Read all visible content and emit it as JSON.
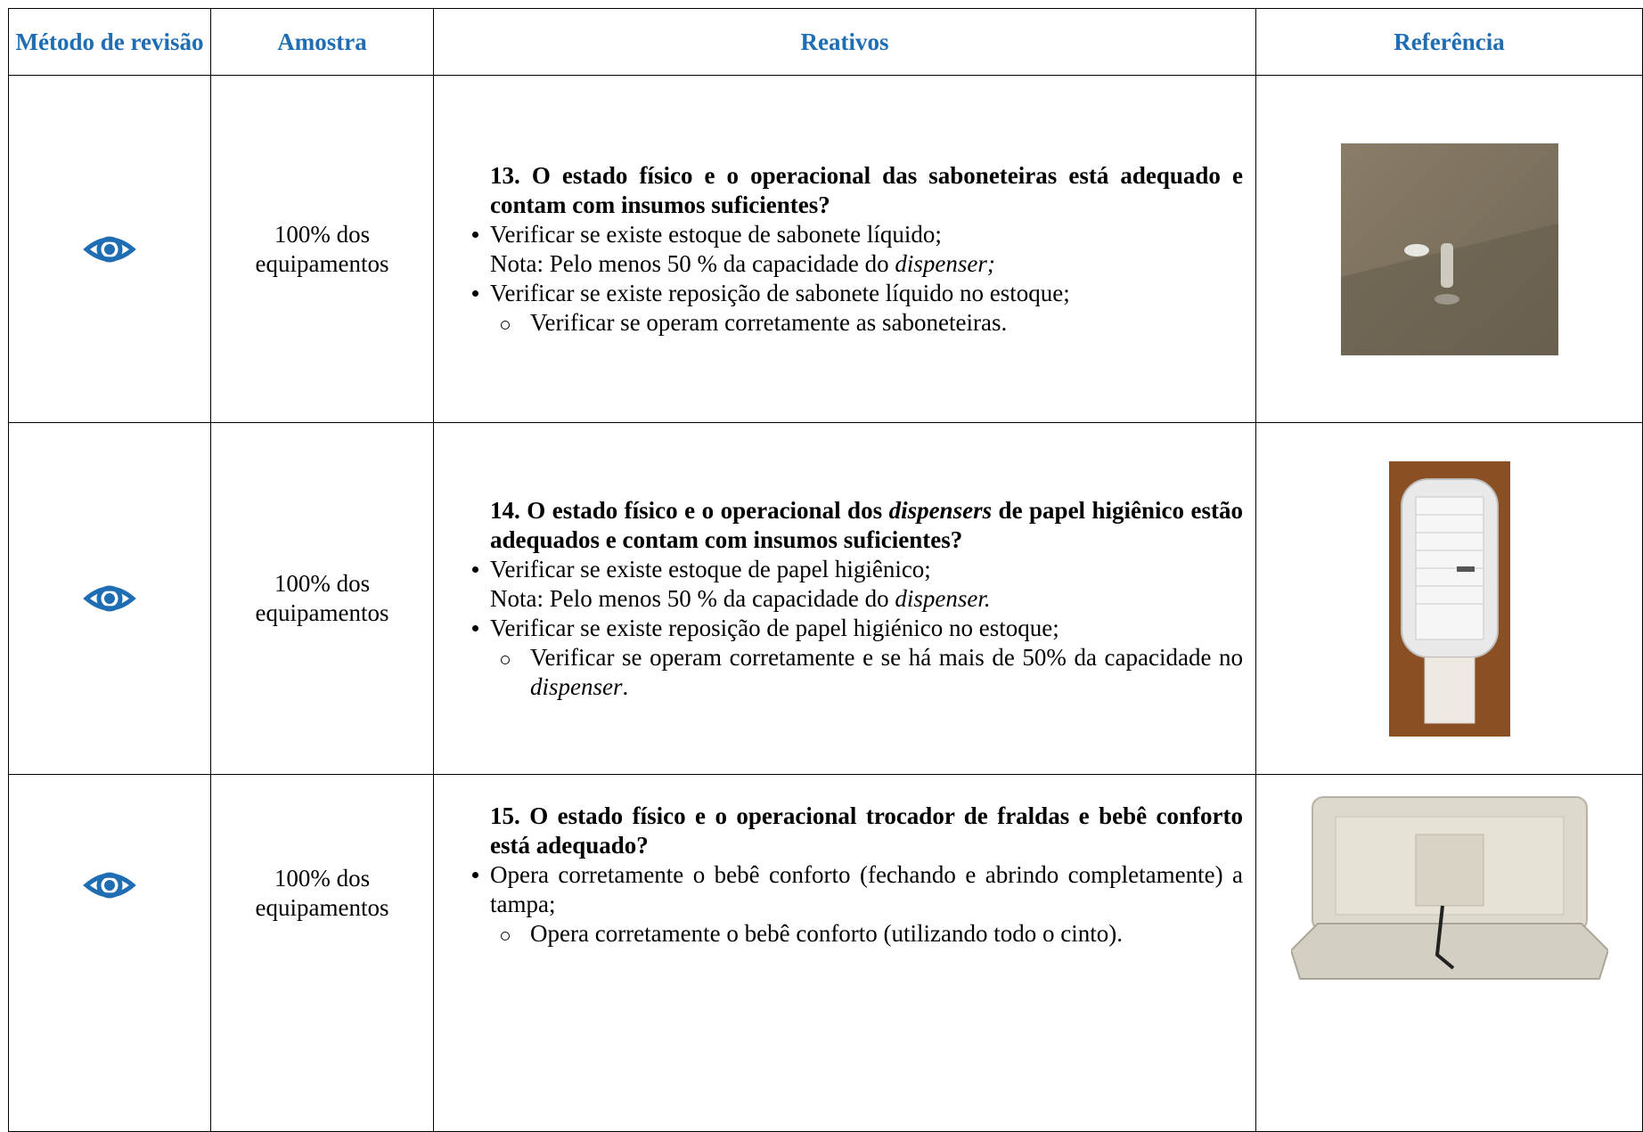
{
  "header": [
    "Método de revisão",
    "Amostra",
    "Reativos",
    "Referência"
  ],
  "rows": [
    {
      "sample": "100% dos equipamentos",
      "question": [
        "13. O estado físico e o operacional das saboneteiras está adequado e contam com insumos suficientes?"
      ],
      "bullets": [
        {
          "text": [
            "Verificar se existe estoque de sabonete líquido;"
          ],
          "note": [
            "Nota: Pelo menos 50 % da capacidade do ",
            "dispenser;"
          ]
        },
        {
          "text": [
            "Verificar se existe reposição de sabonete líquido no estoque;"
          ]
        }
      ],
      "subitems": [
        [
          "Verificar se operam corretamente as saboneteiras."
        ]
      ]
    },
    {
      "sample": "100% dos equipamentos",
      "question": [
        "14. O estado físico e o operacional dos ",
        "dispensers",
        " de papel higiênico estão adequados e contam com insumos suficientes?"
      ],
      "bullets": [
        {
          "text": [
            "Verificar se existe estoque de papel higiênico;"
          ],
          "note": [
            "Nota: Pelo menos 50 % da capacidade do ",
            "dispenser."
          ]
        },
        {
          "text": [
            "Verificar se existe reposição de papel higiénico no estoque;"
          ]
        }
      ],
      "subitems": [
        [
          "Verificar se operam corretamente e se há mais de 50% da capacidade no ",
          "dispenser",
          "."
        ]
      ]
    },
    {
      "sample": "100% dos equipamentos",
      "question": [
        "15. O estado físico e o operacional trocador de fraldas e bebê conforto está adequado?"
      ],
      "bullets": [
        {
          "text": [
            "Opera corretamente o bebê conforto (fechando e abrindo completamente) a tampa;"
          ]
        }
      ],
      "subitems": [
        [
          "Opera corretamente o bebê conforto (utilizando todo o cinto)."
        ]
      ]
    }
  ]
}
